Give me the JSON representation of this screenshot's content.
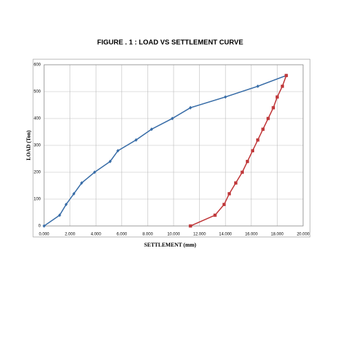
{
  "chart_data": {
    "type": "line",
    "title": "FIGURE . 1 : LOAD VS SETTLEMENT CURVE",
    "x_label": "SETTLEMENT (mm)",
    "y_label": "LOAD (Ton)",
    "xlim": [
      0,
      20
    ],
    "xticks": [
      {
        "value": 0,
        "label": "0.000"
      },
      {
        "value": 2,
        "label": "2.000"
      },
      {
        "value": 4,
        "label": "4.000"
      },
      {
        "value": 6,
        "label": "6.000"
      },
      {
        "value": 8,
        "label": "8.000"
      },
      {
        "value": 10,
        "label": "10.000"
      },
      {
        "value": 12,
        "label": "12.000"
      },
      {
        "value": 14,
        "label": "14.000"
      },
      {
        "value": 16,
        "label": "16.000"
      },
      {
        "value": 18,
        "label": "18.000"
      },
      {
        "value": 20,
        "label": "20.000"
      }
    ],
    "ylim": [
      0,
      600
    ],
    "yticks": [
      0,
      100,
      200,
      300,
      400,
      500,
      600
    ],
    "grid": true,
    "series": [
      {
        "color": "#3a6ea8",
        "marker": "diamond",
        "x": [
          0,
          1.2,
          1.7,
          2.3,
          2.9,
          3.9,
          5.1,
          5.7,
          7.1,
          8.3,
          9.9,
          11.3,
          14.0,
          16.5,
          18.7
        ],
        "values": [
          0,
          40,
          80,
          120,
          160,
          200,
          240,
          280,
          320,
          360,
          400,
          440,
          480,
          520,
          560
        ]
      },
      {
        "color": "#c0393b",
        "marker": "square",
        "x": [
          11.3,
          13.2,
          13.9,
          14.3,
          14.8,
          15.3,
          15.7,
          16.1,
          16.5,
          16.9,
          17.3,
          17.7,
          18.0,
          18.4,
          18.7
        ],
        "values": [
          0,
          40,
          80,
          120,
          160,
          200,
          240,
          280,
          320,
          360,
          400,
          440,
          480,
          520,
          560
        ]
      }
    ]
  }
}
